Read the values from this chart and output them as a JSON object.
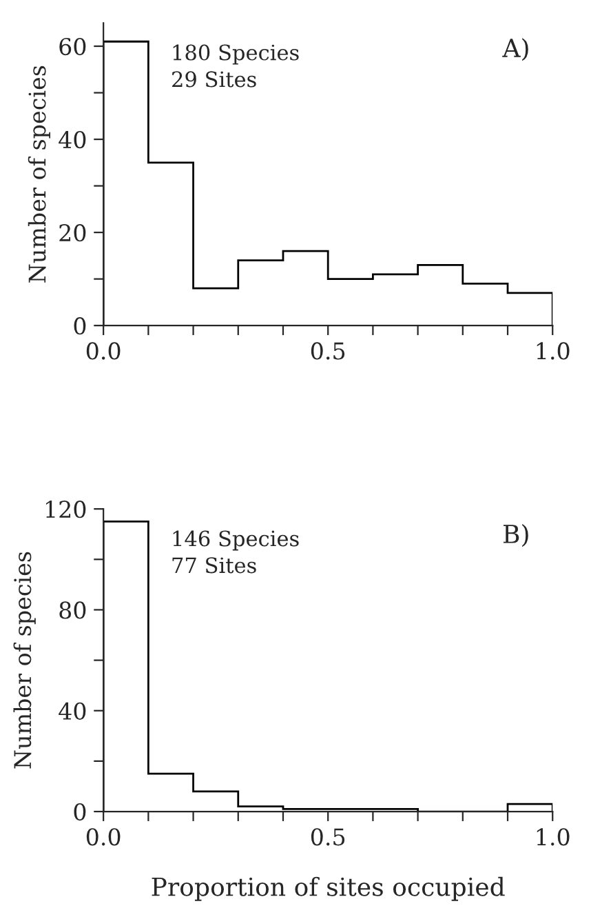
{
  "chart_data": [
    {
      "type": "histogram",
      "ylabel": "Number of species",
      "bins": [
        0.0,
        0.1,
        0.2,
        0.3,
        0.4,
        0.5,
        0.6,
        0.7,
        0.8,
        0.9,
        1.0
      ],
      "values": [
        61,
        35,
        8,
        14,
        16,
        10,
        11,
        13,
        9,
        7
      ],
      "color": "#000000",
      "xlim": [
        0,
        1
      ],
      "xticks": [
        {
          "value": 0,
          "label": "0.0"
        },
        {
          "value": 0.1,
          "label": null
        },
        {
          "value": 0.2,
          "label": null
        },
        {
          "value": 0.3,
          "label": null
        },
        {
          "value": 0.4,
          "label": null
        },
        {
          "value": 0.5,
          "label": "0.5"
        },
        {
          "value": 0.6,
          "label": null
        },
        {
          "value": 0.7,
          "label": null
        },
        {
          "value": 0.8,
          "label": null
        },
        {
          "value": 0.9,
          "label": null
        },
        {
          "value": 1,
          "label": "1.0"
        }
      ],
      "ylim": [
        0,
        65
      ],
      "yticks": [
        0,
        {
          "value": 10,
          "label": null
        },
        20,
        {
          "value": 30,
          "label": null
        },
        40,
        {
          "value": 50,
          "label": null
        },
        60
      ],
      "annotations": [
        "180 Species\n29 Sites",
        "A)"
      ],
      "grid": false,
      "legend": false
    },
    {
      "type": "histogram",
      "ylabel": "Number of species",
      "xlabel": "Proportion of sites occupied",
      "bins": [
        0.0,
        0.1,
        0.2,
        0.3,
        0.4,
        0.5,
        0.6,
        0.7,
        0.8,
        0.9,
        1.0
      ],
      "values": [
        115,
        15,
        8,
        2,
        1,
        1,
        1,
        0,
        0,
        3
      ],
      "color": "#000000",
      "xlim": [
        0,
        1
      ],
      "xticks": [
        {
          "value": 0,
          "label": "0.0"
        },
        {
          "value": 0.1,
          "label": null
        },
        {
          "value": 0.2,
          "label": null
        },
        {
          "value": 0.3,
          "label": null
        },
        {
          "value": 0.4,
          "label": null
        },
        {
          "value": 0.5,
          "label": "0.5"
        },
        {
          "value": 0.6,
          "label": null
        },
        {
          "value": 0.7,
          "label": null
        },
        {
          "value": 0.8,
          "label": null
        },
        {
          "value": 0.9,
          "label": null
        },
        {
          "value": 1,
          "label": "1.0"
        }
      ],
      "ylim": [
        0,
        120
      ],
      "yticks": [
        0,
        {
          "value": 20,
          "label": null
        },
        40,
        {
          "value": 60,
          "label": null
        },
        80,
        {
          "value": 100,
          "label": null
        },
        120
      ],
      "annotations": [
        "146 Species\n77 Sites",
        "B)"
      ],
      "grid": false,
      "legend": false
    }
  ]
}
